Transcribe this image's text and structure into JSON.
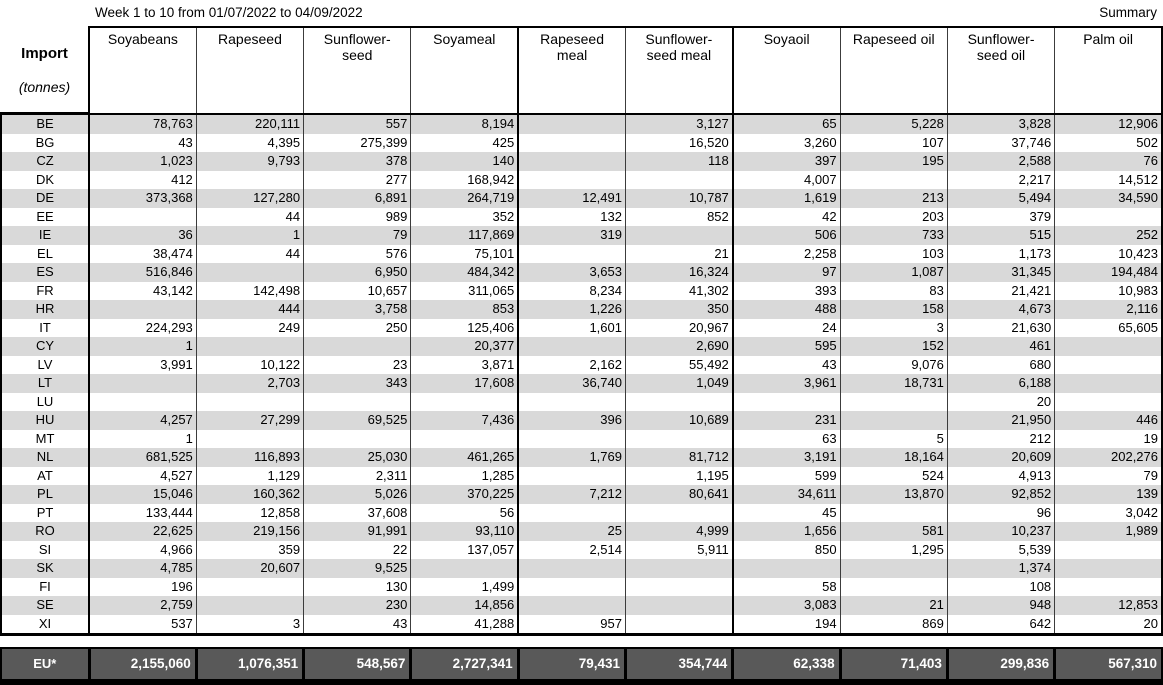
{
  "page": {
    "title": "Week 1 to 10 from 01/07/2022 to 04/09/2022",
    "summary_label": "Summary"
  },
  "colors": {
    "stripe": "#d9d9d9",
    "total_row_bg": "#595959",
    "total_row_text": "#ffffff",
    "border": "#000000"
  },
  "chart_data": {
    "type": "table",
    "title": "Week 1 to 10 from 01/07/2022 to 04/09/2022",
    "unit_label": "Import (tonnes)",
    "corner": {
      "line1": "Import",
      "line2": "(tonnes)"
    },
    "columns": [
      "Soyabeans",
      "Rapeseed",
      "Sunflower-\nseed",
      "Soyameal",
      "Rapeseed\nmeal",
      "Sunflower-\nseed meal",
      "Soyaoil",
      "Rapeseed oil",
      "Sunflower-\nseed oil",
      "Palm oil"
    ],
    "rows": [
      {
        "code": "BE",
        "values": [
          "78,763",
          "220,111",
          "557",
          "8,194",
          "",
          "3,127",
          "65",
          "5,228",
          "3,828",
          "12,906"
        ]
      },
      {
        "code": "BG",
        "values": [
          "43",
          "4,395",
          "275,399",
          "425",
          "",
          "16,520",
          "3,260",
          "107",
          "37,746",
          "502"
        ]
      },
      {
        "code": "CZ",
        "values": [
          "1,023",
          "9,793",
          "378",
          "140",
          "",
          "118",
          "397",
          "195",
          "2,588",
          "76"
        ]
      },
      {
        "code": "DK",
        "values": [
          "412",
          "",
          "277",
          "168,942",
          "",
          "",
          "4,007",
          "",
          "2,217",
          "14,512"
        ]
      },
      {
        "code": "DE",
        "values": [
          "373,368",
          "127,280",
          "6,891",
          "264,719",
          "12,491",
          "10,787",
          "1,619",
          "213",
          "5,494",
          "34,590"
        ]
      },
      {
        "code": "EE",
        "values": [
          "",
          "44",
          "989",
          "352",
          "132",
          "852",
          "42",
          "203",
          "379",
          ""
        ]
      },
      {
        "code": "IE",
        "values": [
          "36",
          "1",
          "79",
          "117,869",
          "319",
          "",
          "506",
          "733",
          "515",
          "252"
        ]
      },
      {
        "code": "EL",
        "values": [
          "38,474",
          "44",
          "576",
          "75,101",
          "",
          "21",
          "2,258",
          "103",
          "1,173",
          "10,423"
        ]
      },
      {
        "code": "ES",
        "values": [
          "516,846",
          "",
          "6,950",
          "484,342",
          "3,653",
          "16,324",
          "97",
          "1,087",
          "31,345",
          "194,484"
        ]
      },
      {
        "code": "FR",
        "values": [
          "43,142",
          "142,498",
          "10,657",
          "311,065",
          "8,234",
          "41,302",
          "393",
          "83",
          "21,421",
          "10,983"
        ]
      },
      {
        "code": "HR",
        "values": [
          "",
          "444",
          "3,758",
          "853",
          "1,226",
          "350",
          "488",
          "158",
          "4,673",
          "2,116"
        ]
      },
      {
        "code": "IT",
        "values": [
          "224,293",
          "249",
          "250",
          "125,406",
          "1,601",
          "20,967",
          "24",
          "3",
          "21,630",
          "65,605"
        ]
      },
      {
        "code": "CY",
        "values": [
          "1",
          "",
          "",
          "20,377",
          "",
          "2,690",
          "595",
          "152",
          "461",
          ""
        ]
      },
      {
        "code": "LV",
        "values": [
          "3,991",
          "10,122",
          "23",
          "3,871",
          "2,162",
          "55,492",
          "43",
          "9,076",
          "680",
          ""
        ]
      },
      {
        "code": "LT",
        "values": [
          "",
          "2,703",
          "343",
          "17,608",
          "36,740",
          "1,049",
          "3,961",
          "18,731",
          "6,188",
          ""
        ]
      },
      {
        "code": "LU",
        "values": [
          "",
          "",
          "",
          "",
          "",
          "",
          "",
          "",
          "20",
          ""
        ]
      },
      {
        "code": "HU",
        "values": [
          "4,257",
          "27,299",
          "69,525",
          "7,436",
          "396",
          "10,689",
          "231",
          "",
          "21,950",
          "446"
        ]
      },
      {
        "code": "MT",
        "values": [
          "1",
          "",
          "",
          "",
          "",
          "",
          "63",
          "5",
          "212",
          "19"
        ]
      },
      {
        "code": "NL",
        "values": [
          "681,525",
          "116,893",
          "25,030",
          "461,265",
          "1,769",
          "81,712",
          "3,191",
          "18,164",
          "20,609",
          "202,276"
        ]
      },
      {
        "code": "AT",
        "values": [
          "4,527",
          "1,129",
          "2,311",
          "1,285",
          "",
          "1,195",
          "599",
          "524",
          "4,913",
          "79"
        ]
      },
      {
        "code": "PL",
        "values": [
          "15,046",
          "160,362",
          "5,026",
          "370,225",
          "7,212",
          "80,641",
          "34,611",
          "13,870",
          "92,852",
          "139"
        ]
      },
      {
        "code": "PT",
        "values": [
          "133,444",
          "12,858",
          "37,608",
          "56",
          "",
          "",
          "45",
          "",
          "96",
          "3,042"
        ]
      },
      {
        "code": "RO",
        "values": [
          "22,625",
          "219,156",
          "91,991",
          "93,110",
          "25",
          "4,999",
          "1,656",
          "581",
          "10,237",
          "1,989"
        ]
      },
      {
        "code": "SI",
        "values": [
          "4,966",
          "359",
          "22",
          "137,057",
          "2,514",
          "5,911",
          "850",
          "1,295",
          "5,539",
          ""
        ]
      },
      {
        "code": "SK",
        "values": [
          "4,785",
          "20,607",
          "9,525",
          "",
          "",
          "",
          "",
          "",
          "1,374",
          ""
        ]
      },
      {
        "code": "FI",
        "values": [
          "196",
          "",
          "130",
          "1,499",
          "",
          "",
          "58",
          "",
          "108",
          ""
        ]
      },
      {
        "code": "SE",
        "values": [
          "2,759",
          "",
          "230",
          "14,856",
          "",
          "",
          "3,083",
          "21",
          "948",
          "12,853"
        ]
      },
      {
        "code": "XI",
        "values": [
          "537",
          "3",
          "43",
          "41,288",
          "957",
          "",
          "194",
          "869",
          "642",
          "20"
        ]
      }
    ],
    "total": {
      "code": "EU*",
      "values": [
        "2,155,060",
        "1,076,351",
        "548,567",
        "2,727,341",
        "79,431",
        "354,744",
        "62,338",
        "71,403",
        "299,836",
        "567,310"
      ]
    }
  }
}
